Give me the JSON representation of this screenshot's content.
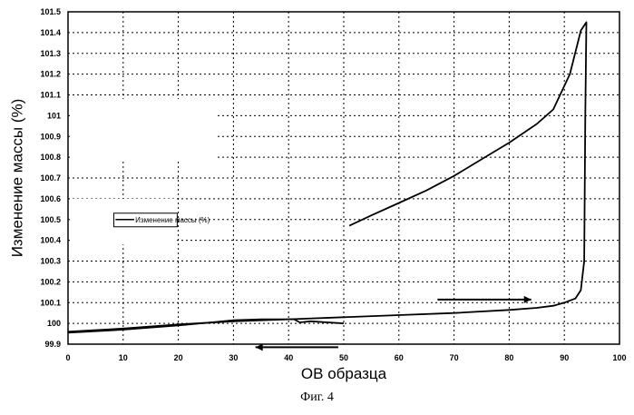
{
  "chart_data": {
    "type": "line",
    "xlabel": "ОВ образца",
    "ylabel": "Изменение массы (%)",
    "xlim": [
      0,
      100
    ],
    "ylim": [
      99.9,
      101.5
    ],
    "x_ticks": [
      "0",
      "10",
      "20",
      "30",
      "40",
      "50",
      "60",
      "70",
      "80",
      "90",
      "100"
    ],
    "y_ticks": [
      "99.9",
      "100",
      "100.1",
      "100.2",
      "100.3",
      "100.4",
      "100.5",
      "100.6",
      "100.7",
      "100.8",
      "100.9",
      "101",
      "101.1",
      "101.2",
      "101.3",
      "101.4",
      "101.5"
    ],
    "grid": true,
    "legend": "center-left",
    "series": [
      {
        "name": "Изменение массы (%)",
        "color": "#000000",
        "points": [
          [
            0,
            99.96
          ],
          [
            10,
            99.975
          ],
          [
            20,
            99.995
          ],
          [
            30,
            100.01
          ],
          [
            40,
            100.02
          ],
          [
            50,
            100.03
          ],
          [
            60,
            100.04
          ],
          [
            70,
            100.05
          ],
          [
            80,
            100.065
          ],
          [
            85,
            100.075
          ],
          [
            88,
            100.085
          ],
          [
            90,
            100.1
          ],
          [
            92,
            100.12
          ],
          [
            93,
            100.16
          ],
          [
            93.6,
            100.3
          ],
          [
            93.8,
            101.0
          ],
          [
            94,
            101.45
          ],
          [
            93,
            101.41
          ],
          [
            91,
            101.2
          ],
          [
            88,
            101.03
          ],
          [
            85,
            100.96
          ],
          [
            80,
            100.87
          ],
          [
            75,
            100.79
          ],
          [
            70,
            100.71
          ],
          [
            65,
            100.64
          ],
          [
            60,
            100.58
          ],
          [
            55,
            100.52
          ],
          [
            51,
            100.47
          ]
        ]
      },
      {
        "name": "",
        "color": "#000000",
        "points": [
          [
            0,
            99.955
          ],
          [
            10,
            99.97
          ],
          [
            20,
            99.99
          ],
          [
            26,
            100.005
          ],
          [
            30,
            100.015
          ],
          [
            35,
            100.02
          ],
          [
            41,
            100.02
          ],
          [
            42,
            100.005
          ],
          [
            44,
            100.01
          ],
          [
            50,
            100.0
          ]
        ]
      }
    ],
    "arrows": [
      {
        "direction": "right",
        "from": [
          67,
          100.115
        ],
        "to": [
          84,
          100.115
        ]
      },
      {
        "direction": "left",
        "from": [
          49,
          99.885
        ],
        "to": [
          34,
          99.885
        ]
      }
    ]
  },
  "caption": "Фиг. 4"
}
